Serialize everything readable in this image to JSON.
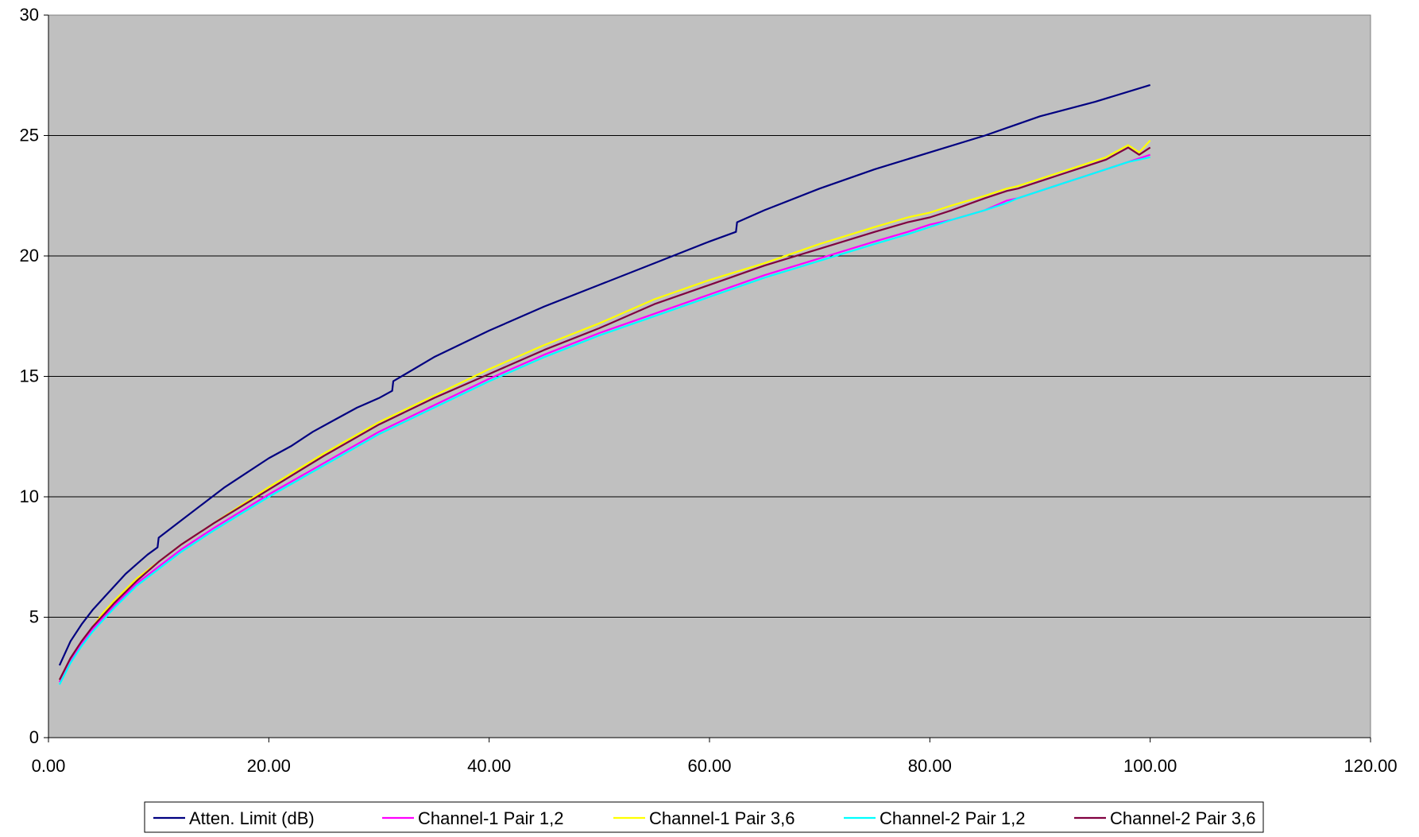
{
  "chart_data": {
    "type": "line",
    "title": "",
    "xlabel": "",
    "ylabel": "",
    "xlim": [
      0,
      120
    ],
    "ylim": [
      0,
      30
    ],
    "x_ticks": [
      0,
      20,
      40,
      60,
      80,
      100,
      120
    ],
    "x_tick_labels": [
      "0.00",
      "20.00",
      "40.00",
      "60.00",
      "80.00",
      "100.00",
      "120.00"
    ],
    "y_ticks": [
      0,
      5,
      10,
      15,
      20,
      25,
      30
    ],
    "y_tick_labels": [
      "0",
      "5",
      "10",
      "15",
      "20",
      "25",
      "30"
    ],
    "grid": "horizontal",
    "legend_position": "bottom",
    "plot_background": "#c0c0c0",
    "series": [
      {
        "name": "Atten. Limit (dB)",
        "color": "#000080",
        "x": [
          1,
          2,
          3,
          4,
          5,
          6,
          7,
          8,
          9,
          9.9,
          10,
          12,
          14,
          16,
          18,
          20,
          22,
          24,
          26,
          28,
          30,
          31.2,
          31.3,
          35,
          40,
          45,
          50,
          55,
          60,
          62.4,
          62.5,
          65,
          70,
          75,
          80,
          85,
          90,
          95,
          100
        ],
        "values": [
          3.0,
          4.0,
          4.7,
          5.3,
          5.8,
          6.3,
          6.8,
          7.2,
          7.6,
          7.9,
          8.3,
          9.0,
          9.7,
          10.4,
          11.0,
          11.6,
          12.1,
          12.7,
          13.2,
          13.7,
          14.1,
          14.4,
          14.8,
          15.8,
          16.9,
          17.9,
          18.8,
          19.7,
          20.6,
          21.0,
          21.4,
          21.9,
          22.8,
          23.6,
          24.3,
          25.0,
          25.8,
          26.4,
          27.1
        ]
      },
      {
        "name": "Channel-1 Pair 1,2",
        "color": "#ff00ff",
        "x": [
          1,
          2,
          3,
          4,
          5,
          6,
          8,
          10,
          12,
          15,
          20,
          25,
          30,
          35,
          40,
          45,
          50,
          55,
          60,
          65,
          70,
          75,
          78,
          80,
          82,
          85,
          87,
          88,
          90,
          92,
          94,
          96,
          98,
          100
        ],
        "values": [
          2.3,
          3.2,
          3.9,
          4.5,
          5.0,
          5.5,
          6.4,
          7.1,
          7.8,
          8.7,
          10.1,
          11.4,
          12.7,
          13.8,
          14.9,
          15.9,
          16.8,
          17.6,
          18.4,
          19.2,
          19.9,
          20.6,
          21.0,
          21.3,
          21.5,
          21.9,
          22.3,
          22.4,
          22.7,
          23.0,
          23.3,
          23.6,
          23.9,
          24.2
        ]
      },
      {
        "name": "Channel-1 Pair 3,6",
        "color": "#ffff00",
        "x": [
          1,
          2,
          3,
          4,
          5,
          6,
          8,
          10,
          12,
          15,
          20,
          25,
          30,
          35,
          40,
          45,
          50,
          55,
          60,
          65,
          70,
          75,
          78,
          80,
          82,
          85,
          87,
          88,
          90,
          92,
          94,
          96,
          98,
          99,
          100
        ],
        "values": [
          2.4,
          3.3,
          4.0,
          4.6,
          5.2,
          5.7,
          6.6,
          7.3,
          8.0,
          8.9,
          10.4,
          11.8,
          13.1,
          14.2,
          15.3,
          16.3,
          17.2,
          18.2,
          19.0,
          19.7,
          20.5,
          21.2,
          21.6,
          21.8,
          22.1,
          22.5,
          22.8,
          22.9,
          23.2,
          23.5,
          23.8,
          24.1,
          24.6,
          24.3,
          24.8
        ]
      },
      {
        "name": "Channel-2 Pair 1,2",
        "color": "#00ffff",
        "x": [
          1,
          2,
          3,
          4,
          5,
          6,
          8,
          10,
          12,
          15,
          20,
          25,
          30,
          35,
          40,
          45,
          50,
          55,
          60,
          65,
          70,
          75,
          78,
          80,
          82,
          85,
          87,
          88,
          90,
          92,
          94,
          96,
          98,
          100
        ],
        "values": [
          2.2,
          3.1,
          3.8,
          4.4,
          4.9,
          5.4,
          6.3,
          7.0,
          7.7,
          8.6,
          10.0,
          11.3,
          12.6,
          13.7,
          14.8,
          15.8,
          16.7,
          17.5,
          18.3,
          19.1,
          19.8,
          20.5,
          20.9,
          21.2,
          21.5,
          21.9,
          22.2,
          22.4,
          22.7,
          23.0,
          23.3,
          23.6,
          23.9,
          24.1
        ]
      },
      {
        "name": "Channel-2 Pair 3,6",
        "color": "#800040",
        "x": [
          1,
          2,
          3,
          4,
          5,
          6,
          8,
          10,
          12,
          15,
          20,
          25,
          30,
          35,
          40,
          45,
          50,
          55,
          60,
          65,
          70,
          75,
          78,
          80,
          82,
          85,
          87,
          88,
          90,
          92,
          94,
          96,
          98,
          99,
          100
        ],
        "values": [
          2.4,
          3.3,
          4.0,
          4.6,
          5.1,
          5.6,
          6.5,
          7.3,
          8.0,
          8.9,
          10.3,
          11.7,
          13.0,
          14.1,
          15.1,
          16.1,
          17.0,
          18.0,
          18.8,
          19.6,
          20.3,
          21.0,
          21.4,
          21.6,
          21.9,
          22.4,
          22.7,
          22.8,
          23.1,
          23.4,
          23.7,
          24.0,
          24.5,
          24.2,
          24.5
        ]
      }
    ]
  }
}
